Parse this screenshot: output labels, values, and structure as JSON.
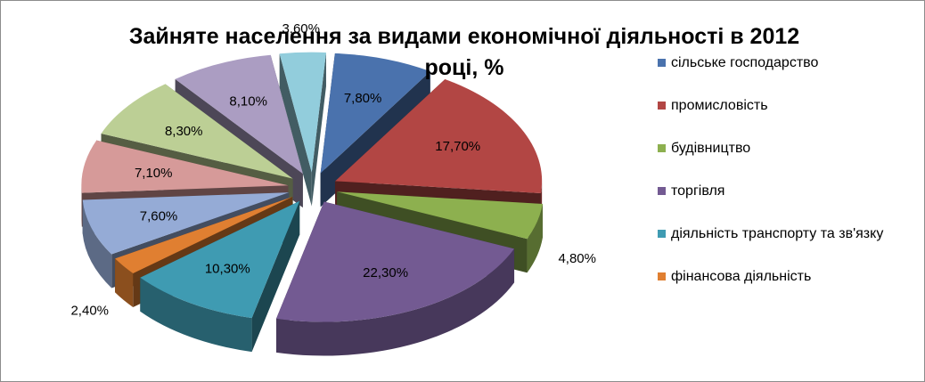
{
  "chart_data": {
    "type": "pie",
    "title_line1": "Зайняте населення за видами економічної діяльності в 2012",
    "title_line2": "році, %",
    "slices": [
      {
        "label": "сільське господарство",
        "value": 7.8,
        "value_label": "7,80%",
        "color": "#4a72ad"
      },
      {
        "label": "промисловість",
        "value": 17.7,
        "value_label": "17,70%",
        "color": "#b24644"
      },
      {
        "label": "будівництво",
        "value": 4.8,
        "value_label": "4,80%",
        "color": "#8db04f"
      },
      {
        "label": "торгівля",
        "value": 22.3,
        "value_label": "22,30%",
        "color": "#735a92"
      },
      {
        "label": "діяльність транспорту та зв'язку",
        "value": 10.3,
        "value_label": "10,30%",
        "color": "#3f9bb2"
      },
      {
        "label": "фінансова діяльність",
        "value": 2.4,
        "value_label": "2,40%",
        "color": "#e07f31"
      },
      {
        "label": "",
        "value": 7.6,
        "value_label": "7,60%",
        "color": "#95abd6"
      },
      {
        "label": "",
        "value": 7.1,
        "value_label": "7,10%",
        "color": "#d69a99"
      },
      {
        "label": "",
        "value": 8.3,
        "value_label": "8,30%",
        "color": "#bccf95"
      },
      {
        "label": "",
        "value": 8.1,
        "value_label": "8,10%",
        "color": "#ab9dc2"
      },
      {
        "label": "",
        "value": 3.6,
        "value_label": "3,60%",
        "color": "#92cddc"
      }
    ],
    "legend_position": "right"
  }
}
